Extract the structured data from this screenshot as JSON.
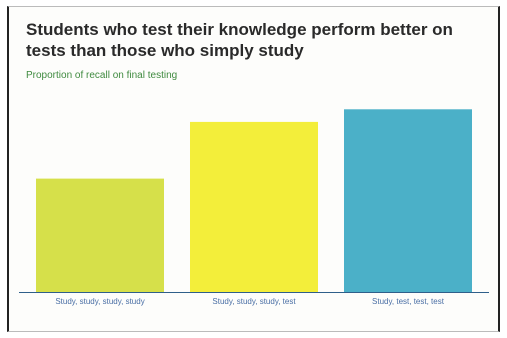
{
  "chart_data": {
    "type": "bar",
    "title": "Students who test their knowledge perform better on tests than those who simply study",
    "subtitle": "Proportion of recall on final testing",
    "xlabel": "",
    "ylabel": "",
    "categories": [
      "Study, study, study, study",
      "Study, study, study, test",
      "Study, test, test, test"
    ],
    "values": [
      0.54,
      0.81,
      0.87
    ],
    "ylim": [
      0,
      1
    ],
    "grid": false,
    "legend": "none",
    "colors": [
      "#d6e04a",
      "#f3ee3a",
      "#4bb0c8"
    ],
    "axis_color": "#2f5f8a"
  }
}
